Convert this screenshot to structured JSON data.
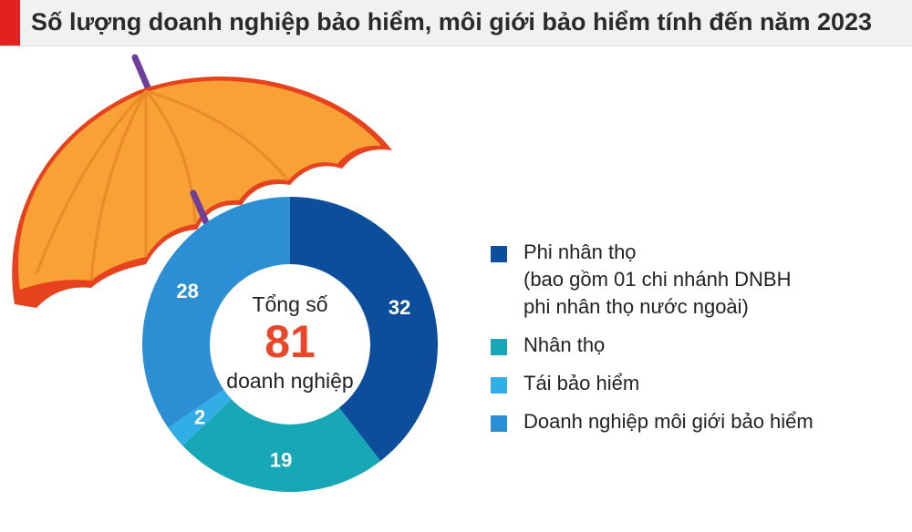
{
  "title": "Số lượng doanh nghiệp bảo hiểm, môi giới bảo hiểm tính đến năm 2023",
  "center": {
    "line1": "Tổng số",
    "total": "81",
    "line2": "doanh nghiệp"
  },
  "colors": {
    "accent": "#e3211e",
    "total": "#e8472a",
    "umbrella_light": "#f7a136",
    "umbrella_dark": "#e5421d",
    "handle": "#6f3e9a"
  },
  "legend": [
    {
      "label": "Phi nhân thọ",
      "note": "(bao gồm 01 chi nhánh DNBH phi nhân thọ nước ngoài)",
      "color": "#0c4d9c"
    },
    {
      "label": "Nhân thọ",
      "note": "",
      "color": "#17a7b7"
    },
    {
      "label": "Tái bảo hiểm",
      "note": "",
      "color": "#32aee6"
    },
    {
      "label": "Doanh nghiệp môi giới bảo hiểm",
      "note": "",
      "color": "#2d8fd3"
    }
  ],
  "chart_data": {
    "type": "pie",
    "title": "Số lượng doanh nghiệp bảo hiểm, môi giới bảo hiểm tính đến năm 2023",
    "total": 81,
    "categories": [
      "Phi nhân thọ",
      "Nhân thọ",
      "Tái bảo hiểm",
      "Doanh nghiệp môi giới bảo hiểm"
    ],
    "values": [
      32,
      19,
      2,
      28
    ],
    "value_labels": [
      "32",
      "19",
      "2",
      "28"
    ],
    "colors": [
      "#0c4d9c",
      "#17a7b7",
      "#32aee6",
      "#2d8fd3"
    ],
    "donut": true,
    "legend": "right"
  }
}
